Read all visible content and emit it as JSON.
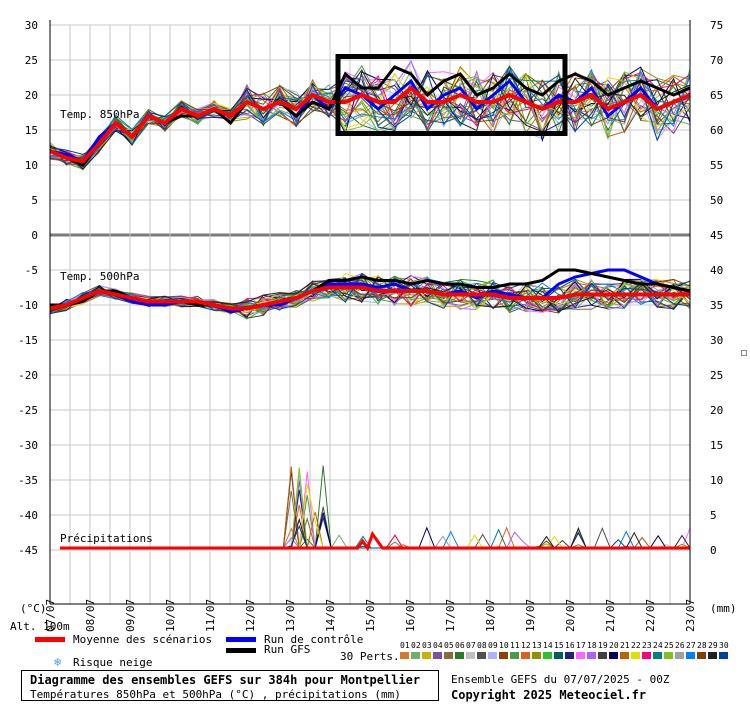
{
  "chart_data": {
    "type": "line",
    "title": "Diagramme des ensembles GEFS sur 384h pour Montpellier",
    "subtitle": "Températures 850hPa et 500hPa (°C) , précipitations (mm)",
    "run_info": "Ensemble GEFS du 07/07/2025 - 00Z",
    "copyright": "Copyright 2025 Meteociel.fr",
    "x_categories": [
      "07/07",
      "08/07",
      "09/07",
      "10/07",
      "11/07",
      "12/07",
      "13/07",
      "14/07",
      "15/07",
      "16/07",
      "17/07",
      "18/07",
      "19/07",
      "20/07",
      "21/07",
      "22/07",
      "23/07"
    ],
    "y_left_ticks": [
      "30",
      "25",
      "20",
      "15",
      "10",
      "5",
      "0",
      "-5",
      "-10",
      "-15",
      "-20",
      "-25",
      "-30",
      "-35",
      "-40",
      "-45"
    ],
    "y_left_unit": "(°C)",
    "alt_label": "Alt. 100m",
    "y_right_ticks_850": [
      "75",
      "70",
      "65",
      "60",
      "55",
      "50",
      "45"
    ],
    "y_right_ticks_500": [
      "40",
      "35",
      "30",
      "25",
      "20",
      "15",
      "10",
      "5",
      "0"
    ],
    "y_right_unit": "(mm)",
    "panel_labels": {
      "t850": "Temp. 850hPa",
      "t500": "Temp. 500hPa",
      "precip": "Précipitations"
    },
    "series": [
      {
        "name": "Moyenne des scénarios",
        "color": "#ff0000",
        "t850": [
          12,
          11,
          10.5,
          13,
          16,
          14,
          17,
          16,
          18,
          17,
          18,
          17,
          19,
          18,
          19,
          18,
          20,
          19,
          19,
          20,
          19,
          19,
          21,
          19,
          19,
          20,
          19,
          19,
          20,
          19,
          18,
          19,
          19,
          20,
          18,
          19,
          20,
          18,
          19,
          20
        ],
        "t500": [
          -10.5,
          -10,
          -9,
          -8,
          -8.5,
          -9,
          -9.5,
          -9.5,
          -9.5,
          -9.5,
          -10,
          -10.5,
          -10.5,
          -10,
          -9.5,
          -9,
          -8,
          -7.5,
          -7.5,
          -7.5,
          -8,
          -8,
          -8,
          -8,
          -8.5,
          -8.5,
          -8.5,
          -8.5,
          -9,
          -9,
          -9,
          -9,
          -8.5,
          -8.5,
          -8.5,
          -8.5,
          -8.5,
          -8.5,
          -8.5,
          -8.5
        ],
        "precip": [
          0,
          0,
          0,
          0,
          0,
          0,
          0,
          0,
          0,
          0,
          0,
          0,
          0,
          0,
          0,
          0,
          0,
          0,
          0,
          0,
          0,
          0,
          0,
          0,
          0,
          0,
          0,
          0,
          0,
          0,
          0,
          0,
          0,
          0,
          0,
          0,
          0,
          0,
          0,
          0,
          0,
          0,
          0,
          0,
          0,
          0,
          0,
          0,
          0,
          0,
          0,
          0,
          0,
          0,
          0,
          0,
          0,
          0,
          0,
          0,
          0,
          1,
          0,
          2,
          1,
          0,
          0,
          0,
          0,
          0,
          0,
          0,
          0,
          0,
          0,
          0,
          0,
          0,
          0,
          0,
          0,
          0,
          0,
          0,
          0,
          0,
          0,
          0,
          0,
          0,
          0,
          0,
          0,
          0,
          0,
          0,
          0,
          0,
          0,
          0,
          0,
          0,
          0,
          0,
          0,
          0,
          0,
          0,
          0,
          0,
          0,
          0,
          0,
          0,
          0,
          0,
          0,
          0,
          0,
          0,
          0,
          0,
          0,
          0,
          0,
          0,
          0,
          0
        ]
      },
      {
        "name": "Run de contrôle",
        "color": "#0000ff",
        "t850": [
          12,
          11.5,
          10.5,
          14,
          16,
          14,
          17,
          16,
          18,
          17,
          18,
          17,
          19,
          18,
          19,
          17,
          20,
          18,
          21,
          20,
          18,
          20,
          22,
          18,
          20,
          21,
          18,
          20,
          22,
          19,
          18,
          20,
          19,
          21,
          17,
          19,
          21,
          18,
          19,
          20
        ],
        "t500": [
          -10,
          -10,
          -9,
          -8,
          -8.5,
          -9.5,
          -10,
          -10,
          -9.5,
          -9.5,
          -10,
          -11,
          -10.5,
          -10,
          -10,
          -9,
          -8,
          -7,
          -7,
          -7,
          -7.5,
          -7,
          -8,
          -8,
          -8.5,
          -8,
          -9,
          -8,
          -8.5,
          -9,
          -9,
          -7,
          -6,
          -5.5,
          -5,
          -5,
          -6,
          -7,
          -7.5,
          -8
        ]
      },
      {
        "name": "Run GFS",
        "color": "#000000",
        "t850": [
          12,
          11,
          10,
          13,
          16,
          14,
          17,
          16,
          17,
          17,
          18,
          16,
          19,
          18,
          19,
          17,
          19,
          18,
          23,
          21,
          21,
          24,
          23,
          20,
          22,
          23,
          20,
          21,
          23,
          21,
          20,
          22,
          23,
          22,
          20,
          21,
          22,
          21,
          20,
          21
        ],
        "t500": [
          -10,
          -10,
          -9.5,
          -8,
          -8,
          -9,
          -9.5,
          -9.5,
          -9.5,
          -10,
          -10,
          -10.5,
          -10.5,
          -10,
          -9.5,
          -9,
          -8,
          -6.5,
          -6.5,
          -6,
          -6.5,
          -6.5,
          -7,
          -6.5,
          -7,
          -7,
          -7.5,
          -7.5,
          -7,
          -7,
          -6.5,
          -5,
          -5,
          -5.5,
          -6,
          -6.5,
          -7,
          -7,
          -7.5,
          -8
        ]
      }
    ],
    "legend": {
      "mean": "Moyenne des scénarios",
      "control": "Run de contrôle",
      "gfs": "Run GFS",
      "snow": "Risque neige",
      "perts": "30 Perts."
    },
    "perturbations": [
      {
        "n": "01",
        "c": "#d07a2a"
      },
      {
        "n": "02",
        "c": "#6fb06f"
      },
      {
        "n": "03",
        "c": "#c8b400"
      },
      {
        "n": "04",
        "c": "#7b4fa0"
      },
      {
        "n": "05",
        "c": "#8a6a3a"
      },
      {
        "n": "06",
        "c": "#2a7a2a"
      },
      {
        "n": "07",
        "c": "#c0c0c0"
      },
      {
        "n": "08",
        "c": "#505050"
      },
      {
        "n": "09",
        "c": "#b0b0ff"
      },
      {
        "n": "10",
        "c": "#904000"
      },
      {
        "n": "11",
        "c": "#4a9a4a"
      },
      {
        "n": "12",
        "c": "#e06020"
      },
      {
        "n": "13",
        "c": "#909000"
      },
      {
        "n": "14",
        "c": "#30c030"
      },
      {
        "n": "15",
        "c": "#006060"
      },
      {
        "n": "16",
        "c": "#202080"
      },
      {
        "n": "17",
        "c": "#ff66ff"
      },
      {
        "n": "18",
        "c": "#b060ff"
      },
      {
        "n": "19",
        "c": "#404040"
      },
      {
        "n": "20",
        "c": "#000060"
      },
      {
        "n": "21",
        "c": "#c06000"
      },
      {
        "n": "22",
        "c": "#e0e000"
      },
      {
        "n": "23",
        "c": "#ff0080"
      },
      {
        "n": "24",
        "c": "#008080"
      },
      {
        "n": "25",
        "c": "#80c020"
      },
      {
        "n": "26",
        "c": "#a0a0a0"
      },
      {
        "n": "27",
        "c": "#0080ff"
      },
      {
        "n": "28",
        "c": "#804000"
      },
      {
        "n": "29",
        "c": "#202020"
      },
      {
        "n": "30",
        "c": "#0040a0"
      }
    ],
    "highlight_box": {
      "x_start": "14/07",
      "x_end": "20/07",
      "y_top": 25.5,
      "y_bottom": 14.5
    },
    "grid": true
  }
}
